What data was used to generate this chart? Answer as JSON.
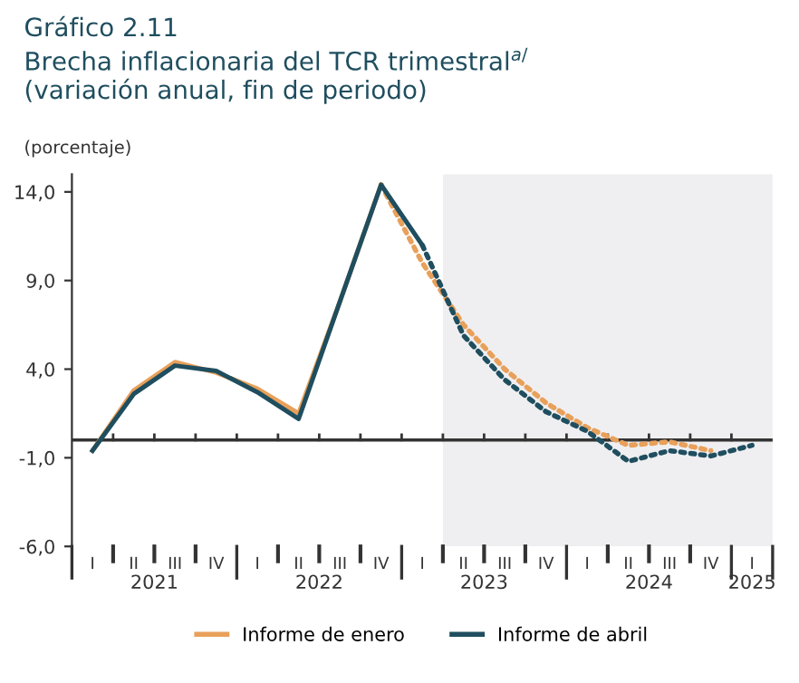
{
  "chart_data": {
    "type": "line",
    "title": "Gráfico 2.11",
    "subtitle": "Brecha inflacionaria del TCR trimestral$^{a/}$\n(variación anual, fin de periodo)",
    "ylabel": "(porcentaje)",
    "categories": [
      "I",
      "II",
      "III",
      "IV",
      "I",
      "II",
      "III",
      "IV",
      "I",
      "II",
      "III",
      "IV",
      "I",
      "II",
      "III",
      "IV",
      "I"
    ],
    "series": [
      {
        "name": "Informe de enero",
        "color": "#e8a05a",
        "line_style": "solid",
        "values": [
          -0.6,
          2.8,
          4.4,
          3.8,
          2.9,
          1.5,
          7.8,
          14.4,
          null,
          null,
          null,
          null,
          null,
          null,
          null,
          null,
          null
        ]
      },
      {
        "color": "#e8a05a",
        "line_style": "dotted",
        "values": [
          null,
          null,
          null,
          null,
          null,
          null,
          null,
          14.4,
          10.0,
          6.5,
          4.0,
          2.1,
          0.7,
          -0.3,
          -0.1,
          -0.6,
          null
        ]
      },
      {
        "name": "Informe de abril",
        "color": "#1f4e5f",
        "line_style": "solid",
        "values": [
          -0.6,
          2.6,
          4.2,
          3.9,
          2.7,
          1.2,
          7.8,
          14.4,
          11.0,
          null,
          null,
          null,
          null,
          null,
          null,
          null,
          null
        ]
      },
      {
        "color": "#1f4e5f",
        "line_style": "dotted",
        "values": [
          null,
          null,
          null,
          null,
          null,
          null,
          null,
          null,
          11.0,
          5.9,
          3.4,
          1.6,
          0.5,
          -1.2,
          -0.6,
          -0.9,
          -0.3
        ]
      }
    ],
    "annotations": [
      "2021",
      "2022",
      "2023",
      "2024",
      "2025"
    ],
    "ylim": [
      -6,
      15
    ],
    "yticks": [
      {
        "value": -6,
        "label": "-6,0"
      },
      {
        "value": -1,
        "label": "-1,0"
      },
      {
        "value": 4,
        "label": "4,0"
      },
      {
        "value": 9,
        "label": "9,0"
      },
      {
        "value": 14,
        "label": "14,0"
      }
    ],
    "ref_lines": [
      {
        "axis": "y",
        "value": 0,
        "color": "#333333"
      }
    ],
    "grid": false,
    "legend": "bottom"
  }
}
